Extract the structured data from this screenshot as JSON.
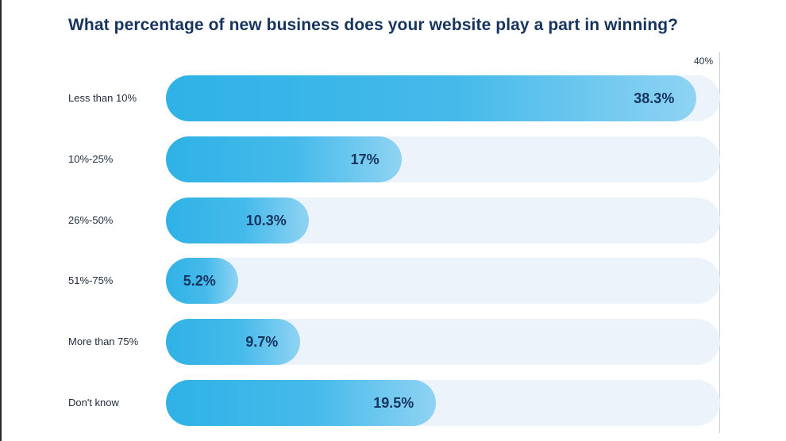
{
  "chart_data": {
    "type": "bar",
    "orientation": "horizontal",
    "title": "What percentage of new business does your website play a part in winning?",
    "categories": [
      "Less than 10%",
      "10%-25%",
      "26%-50%",
      "51%-75%",
      "More than 75%",
      "Don't know"
    ],
    "values": [
      38.3,
      17,
      10.3,
      5.2,
      9.7,
      19.5
    ],
    "value_labels": [
      "38.3%",
      "17%",
      "10.3%",
      "5.2%",
      "9.7%",
      "19.5%"
    ],
    "xlim": [
      0,
      40
    ],
    "max_tick_label": "40%",
    "grid": false,
    "legend": "none",
    "colors": {
      "bar_start": "#2fb2e6",
      "bar_end": "#8fd3f3",
      "track": "#edf3fb",
      "label_text": "#17345f"
    }
  }
}
